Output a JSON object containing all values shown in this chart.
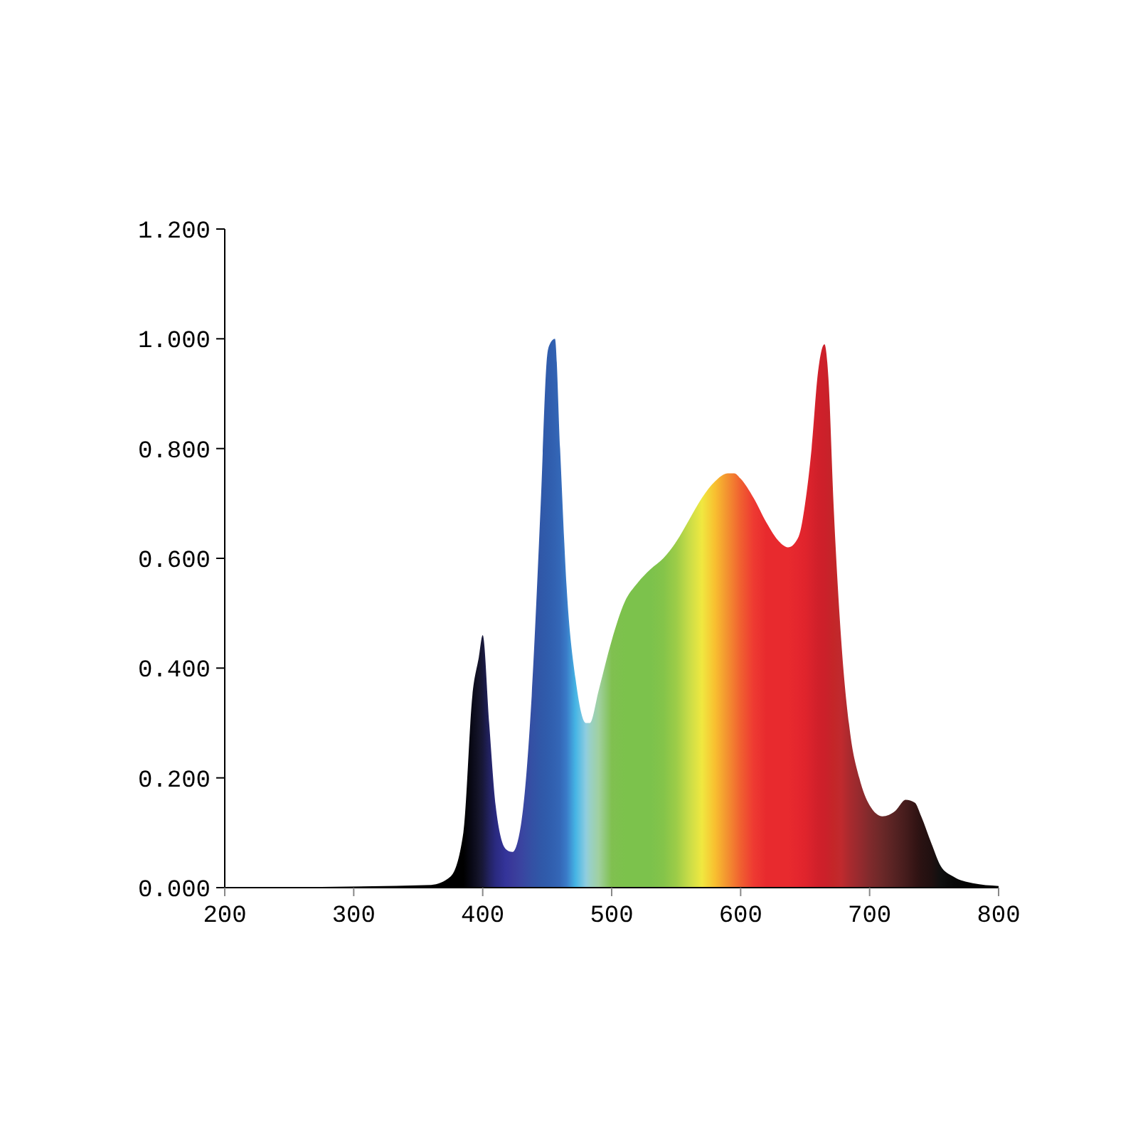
{
  "chart_data": {
    "type": "area",
    "x": [
      200,
      360,
      375,
      385,
      392,
      397,
      400,
      405,
      410,
      418,
      423,
      430,
      438,
      445,
      450,
      452,
      456,
      460,
      465,
      472,
      480,
      483,
      490,
      500,
      510,
      520,
      530,
      540,
      550,
      560,
      570,
      580,
      590,
      595,
      600,
      610,
      620,
      630,
      637,
      645,
      650,
      655,
      660,
      665,
      668,
      672,
      678,
      685,
      692,
      700,
      710,
      720,
      728,
      735,
      740,
      748,
      755,
      765,
      780,
      800
    ],
    "series": [
      {
        "values": [
          0,
          0.005,
          0.02,
          0.1,
          0.35,
          0.42,
          0.46,
          0.3,
          0.15,
          0.07,
          0.065,
          0.12,
          0.35,
          0.7,
          0.97,
          0.99,
          1.0,
          0.8,
          0.55,
          0.38,
          0.3,
          0.3,
          0.36,
          0.45,
          0.52,
          0.555,
          0.58,
          0.6,
          0.63,
          0.67,
          0.71,
          0.74,
          0.755,
          0.755,
          0.745,
          0.71,
          0.665,
          0.63,
          0.62,
          0.64,
          0.7,
          0.8,
          0.94,
          0.99,
          0.93,
          0.7,
          0.45,
          0.28,
          0.2,
          0.15,
          0.13,
          0.14,
          0.16,
          0.155,
          0.13,
          0.08,
          0.04,
          0.02,
          0.008,
          0.003
        ],
        "colors": [
          "#000000",
          "#000000",
          "#000000",
          "#000000",
          "#0a0a18",
          "#14142a",
          "#18183a",
          "#222260",
          "#2a2a80",
          "#34349a",
          "#3a3a9a",
          "#3a44a0",
          "#3450a4",
          "#3058a8",
          "#305cac",
          "#305eae",
          "#3262b2",
          "#3468b8",
          "#3a7bc8",
          "#45b5e5",
          "#8ecde0",
          "#98d0c8",
          "#a0d0a0",
          "#80c050",
          "#7cc24c",
          "#7cc24c",
          "#7cc24c",
          "#84c44a",
          "#9ccc48",
          "#c8dc48",
          "#f0e840",
          "#f8c030",
          "#f39030",
          "#f27830",
          "#f06030",
          "#ee3a32",
          "#e82a2e",
          "#e82a2e",
          "#e82a2e",
          "#e4262e",
          "#e0242c",
          "#d8222c",
          "#d0202a",
          "#cc202a",
          "#c8222a",
          "#c42628",
          "#c02a2e",
          "#a82a2e",
          "#962a2e",
          "#802a2c",
          "#6a2828",
          "#552222",
          "#451c1c",
          "#351515",
          "#2a1212",
          "#201010",
          "#101010",
          "#080808",
          "#040404",
          "#000000"
        ]
      }
    ],
    "xlim": [
      200,
      800
    ],
    "xticks": [
      200,
      300,
      400,
      500,
      600,
      700,
      800
    ],
    "ylim": [
      0,
      1.2
    ],
    "yticks": [
      {
        "value": 0,
        "label": "0.000"
      },
      {
        "value": 0.2,
        "label": "0.200"
      },
      {
        "value": 0.4,
        "label": "0.400"
      },
      {
        "value": 0.6,
        "label": "0.600"
      },
      {
        "value": 0.8,
        "label": "0.800"
      },
      {
        "value": 1,
        "label": "1.000"
      },
      {
        "value": 1.2,
        "label": "1.200"
      }
    ]
  }
}
